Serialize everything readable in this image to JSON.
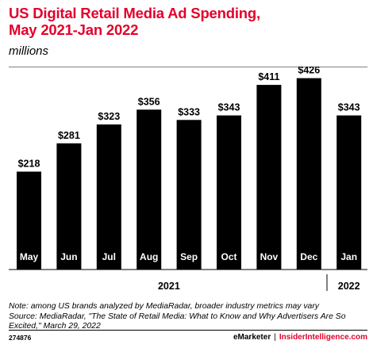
{
  "title": {
    "line1": "US Digital Retail Media Ad Spending,",
    "line2": "May 2021-Jan 2022"
  },
  "subtitle": "millions",
  "chart_data": {
    "type": "bar",
    "title": "US Digital Retail Media Ad Spending, May 2021-Jan 2022",
    "ylabel": "millions",
    "categories": [
      "May",
      "Jun",
      "Jul",
      "Aug",
      "Sep",
      "Oct",
      "Nov",
      "Dec",
      "Jan"
    ],
    "values": [
      218,
      281,
      323,
      356,
      333,
      343,
      411,
      426,
      343
    ],
    "value_labels": [
      "$218",
      "$281",
      "$323",
      "$356",
      "$333",
      "$343",
      "$411",
      "$426",
      "$343"
    ],
    "groups": [
      {
        "label": "2021",
        "categories": [
          "May",
          "Jun",
          "Jul",
          "Aug",
          "Sep",
          "Oct",
          "Nov",
          "Dec"
        ]
      },
      {
        "label": "2022",
        "categories": [
          "Jan"
        ]
      }
    ],
    "ylim": [
      0,
      450
    ],
    "grid": false,
    "bar_color": "#000000"
  },
  "notes": {
    "note": "Note: among US brands analyzed by MediaRadar, broader industry metrics may vary",
    "source_line1": "Source: MediaRadar, \"The State of Retail Media: What to Know and Why Advertisers Are So",
    "source_line2": "Excited,\" March 29, 2022"
  },
  "footer": {
    "chart_id": "274876",
    "brand1": "eMarketer",
    "separator": "|",
    "brand2": "InsiderIntelligence.com"
  },
  "colors": {
    "accent": "#e4002b",
    "bar": "#000000",
    "background": "#ffffff"
  }
}
